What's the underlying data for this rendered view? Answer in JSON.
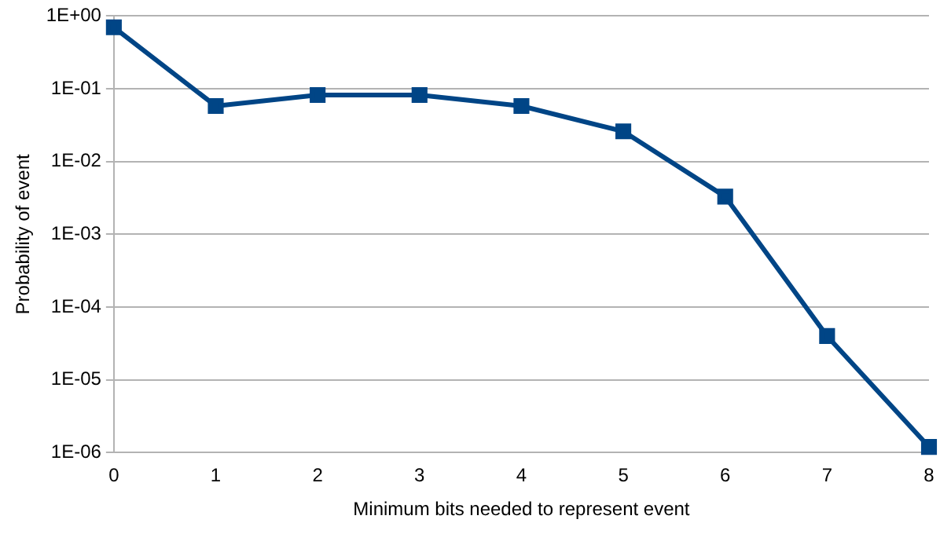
{
  "chart_data": {
    "type": "line",
    "xlabel": "Minimum bits needed to represent event",
    "ylabel": "Probability of event",
    "x": [
      0,
      1,
      2,
      3,
      4,
      5,
      6,
      7,
      8
    ],
    "series": [
      {
        "color": "#004586",
        "values": [
          0.7,
          0.058,
          0.082,
          0.082,
          0.058,
          0.026,
          0.0033,
          4e-05,
          1.2e-06
        ]
      }
    ],
    "xlim": [
      0,
      8
    ],
    "xticks": [
      0,
      1,
      2,
      3,
      4,
      5,
      6,
      7,
      8
    ],
    "ylim": [
      1e-06,
      1
    ],
    "yticks": [
      {
        "value": 1e-06,
        "label": "1E-06"
      },
      {
        "value": 1e-05,
        "label": "1E-05"
      },
      {
        "value": 0.0001,
        "label": "1E-04"
      },
      {
        "value": 0.001,
        "label": "1E-03"
      },
      {
        "value": 0.01,
        "label": "1E-02"
      },
      {
        "value": 0.1,
        "label": "1E-01"
      },
      {
        "value": 1,
        "label": "1E+00"
      }
    ],
    "log": "y",
    "grid": "y",
    "legend": false,
    "marker": "square",
    "line_style": "solid"
  }
}
